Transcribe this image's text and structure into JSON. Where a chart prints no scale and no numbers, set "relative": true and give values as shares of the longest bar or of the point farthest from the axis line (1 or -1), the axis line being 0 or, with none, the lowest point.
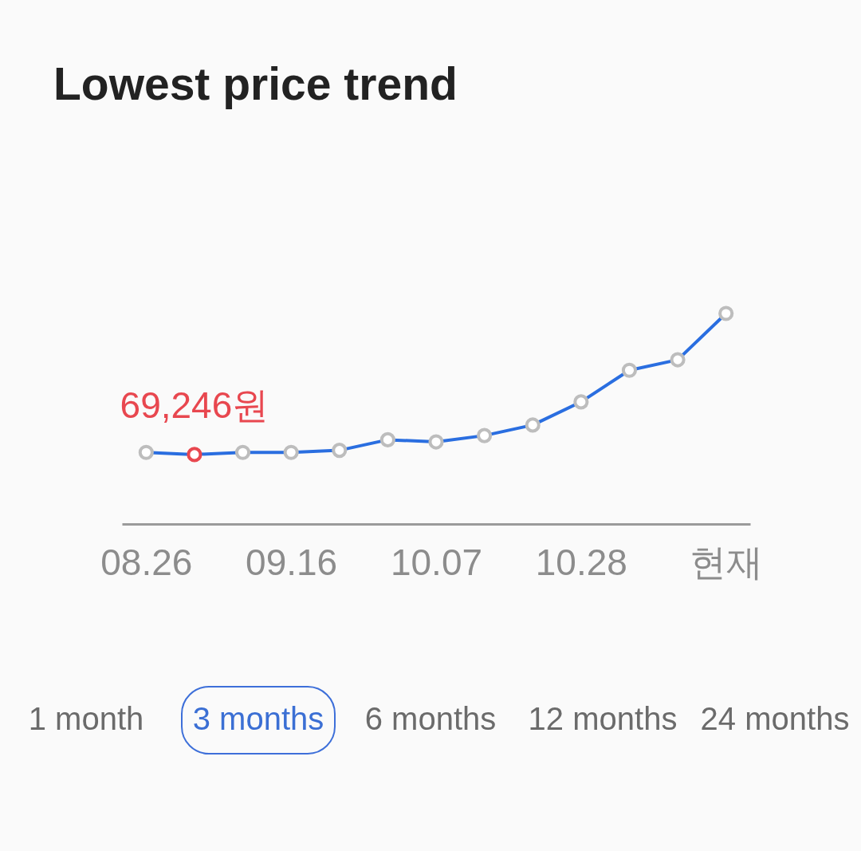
{
  "chart_data": {
    "type": "line",
    "title": "Lowest price trend",
    "categories": [
      "08.26",
      null,
      null,
      "09.16",
      null,
      null,
      "10.07",
      null,
      null,
      "10.28",
      null,
      null,
      "현재"
    ],
    "relative": true,
    "marker": "circle",
    "line_style": "solid",
    "series": [
      {
        "color": "#2a6ee0",
        "colors": [
          "#bdbdbd",
          "#e8474f",
          "#bdbdbd",
          "#bdbdbd",
          "#bdbdbd",
          "#bdbdbd",
          "#bdbdbd",
          "#bdbdbd",
          "#bdbdbd",
          "#bdbdbd",
          "#bdbdbd",
          "#bdbdbd",
          "#bdbdbd"
        ],
        "values": [
          0.34,
          0.33,
          0.34,
          0.34,
          0.35,
          0.4,
          0.39,
          0.42,
          0.47,
          0.58,
          0.73,
          0.78,
          1
        ]
      }
    ],
    "annotations": [
      {
        "text": "69,246원",
        "y": 0.33
      },
      "1 month",
      "3 months",
      "6 months",
      "12 months",
      "24 months"
    ]
  }
}
